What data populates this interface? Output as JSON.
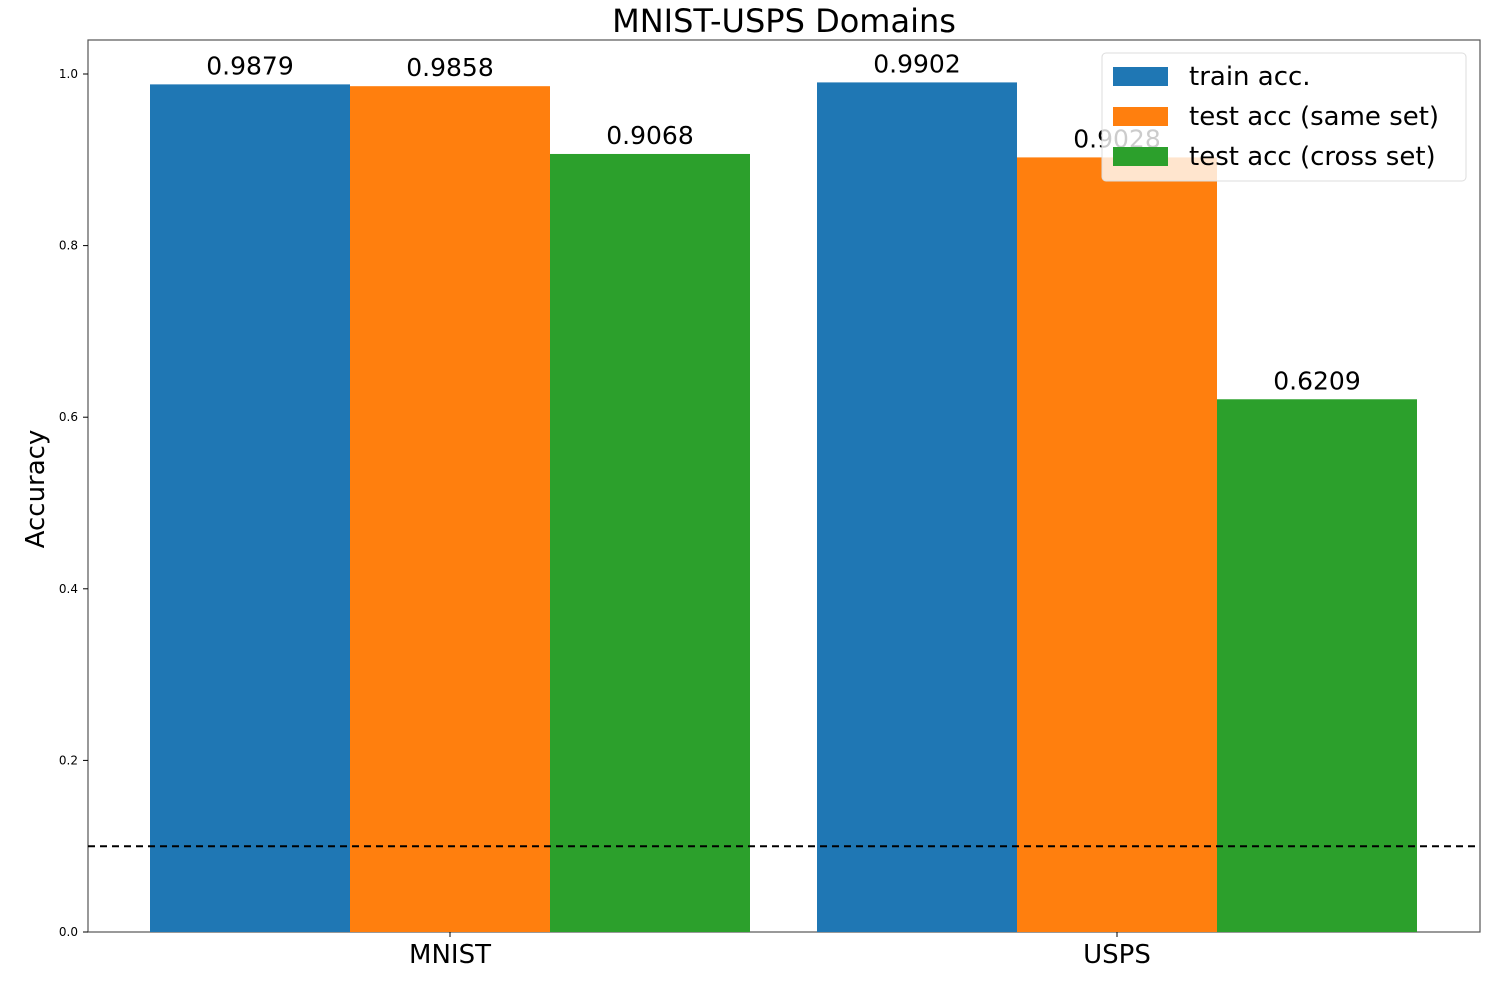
{
  "chart_data": {
    "type": "bar",
    "title": "MNIST-USPS Domains",
    "xlabel": "",
    "ylabel": "Accuracy",
    "categories": [
      "MNIST",
      "USPS"
    ],
    "series": [
      {
        "name": "train acc.",
        "color": "#1f77b4",
        "values": [
          0.9879,
          0.9902
        ],
        "labels": [
          "0.9879",
          "0.9902"
        ]
      },
      {
        "name": "test acc (same set)",
        "color": "#ff7f0e",
        "values": [
          0.9858,
          0.9028
        ],
        "labels": [
          "0.9858",
          "0.9028"
        ]
      },
      {
        "name": "test acc (cross set)",
        "color": "#2ca02c",
        "values": [
          0.9068,
          0.6209
        ],
        "labels": [
          "0.9068",
          "0.6209"
        ]
      }
    ],
    "ylim": [
      0,
      1.0
    ],
    "yticks": [
      0.0,
      0.2,
      0.4,
      0.6,
      0.8,
      1.0
    ],
    "ytick_labels": [
      "0.0",
      "0.2",
      "0.4",
      "0.6",
      "0.8",
      "1.0"
    ],
    "reference_line": {
      "y": 0.1,
      "style": "dashed",
      "color": "#000000"
    },
    "legend_position": "top-right",
    "grid": false
  }
}
